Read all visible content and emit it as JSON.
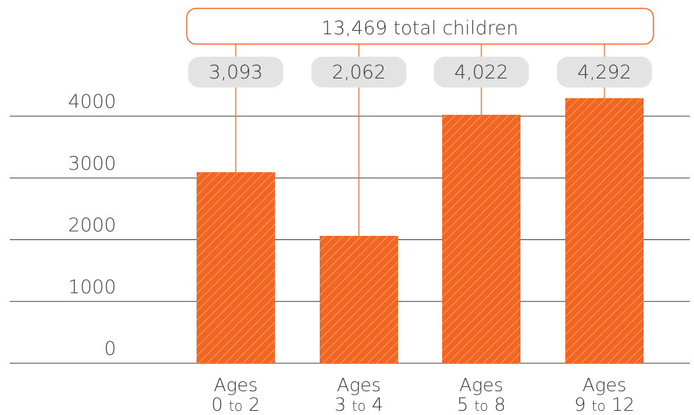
{
  "chart_data": {
    "type": "bar",
    "title": "",
    "xlabel": "",
    "ylabel": "",
    "total_label": "13,469 total children",
    "categories": [
      {
        "line1": "Ages",
        "from": "0",
        "to_word": "to",
        "until": "2"
      },
      {
        "line1": "Ages",
        "from": "3",
        "to_word": "to",
        "until": "4"
      },
      {
        "line1": "Ages",
        "from": "5",
        "to_word": "to",
        "until": "8"
      },
      {
        "line1": "Ages",
        "from": "9",
        "to_word": "to",
        "until": "12"
      }
    ],
    "values": [
      3093,
      2062,
      4022,
      4292
    ],
    "value_labels": [
      "3,093",
      "2,062",
      "4,022",
      "4,292"
    ],
    "yticks": [
      0,
      1000,
      2000,
      3000,
      4000
    ],
    "ytick_labels": [
      "0",
      "1000",
      "2000",
      "3000",
      "4000"
    ],
    "ylim": [
      0,
      4000
    ],
    "grid": true,
    "colors": {
      "bar": "#f26522",
      "hatch": "#ffa26b",
      "connector": "#f26522",
      "total_box_border": "#f26522",
      "value_pill": "#e3e3e3",
      "gridline": "#333333",
      "text": "#3a3a3a"
    }
  }
}
